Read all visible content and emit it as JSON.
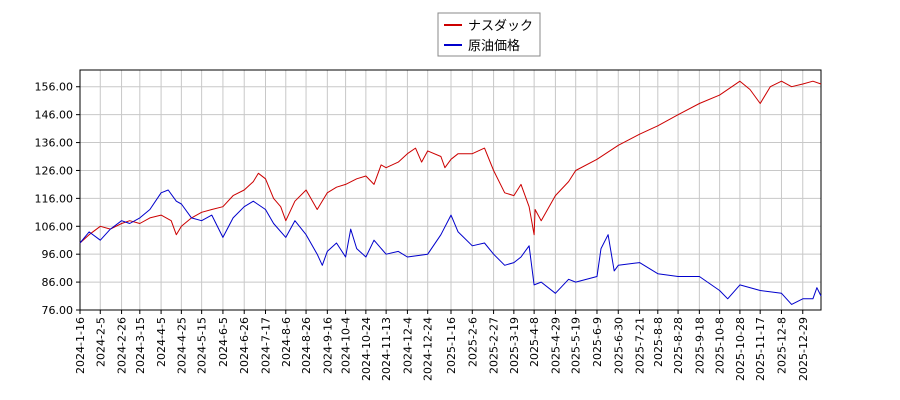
{
  "chart_data": {
    "type": "line",
    "title": "",
    "xlabel": "",
    "ylabel": "",
    "x_start": "2024-01-16",
    "x_end": "2026-01-16",
    "ylim": [
      76,
      162
    ],
    "yticks": [
      76,
      86,
      96,
      106,
      116,
      126,
      136,
      146,
      156
    ],
    "ytick_labels": [
      "76.00",
      "86.00",
      "96.00",
      "106.00",
      "116.00",
      "126.00",
      "136.00",
      "146.00",
      "156.00"
    ],
    "xticks": [
      "2024-1-16",
      "2024-2-5",
      "2024-2-26",
      "2024-3-15",
      "2024-4-5",
      "2024-4-25",
      "2024-5-15",
      "2024-6-5",
      "2024-6-26",
      "2024-7-17",
      "2024-8-6",
      "2024-8-26",
      "2024-9-16",
      "2024-10-4",
      "2024-10-24",
      "2024-11-13",
      "2024-12-4",
      "2024-12-24",
      "2025-1-16",
      "2025-2-6",
      "2025-2-27",
      "2025-3-19",
      "2025-4-8",
      "2025-4-29",
      "2025-5-19",
      "2025-6-9",
      "2025-6-30",
      "2025-7-21",
      "2025-8-8",
      "2025-8-28",
      "2025-9-18",
      "2025-10-8",
      "2025-10-28",
      "2025-11-17",
      "2025-12-8",
      "2025-12-29"
    ],
    "grid": true,
    "legend_position": "top-center",
    "series": [
      {
        "name": "ナスダック",
        "color": "#cc0000",
        "points": [
          [
            "2024-01-16",
            100
          ],
          [
            "2024-01-25",
            103
          ],
          [
            "2024-02-05",
            106
          ],
          [
            "2024-02-15",
            105
          ],
          [
            "2024-02-26",
            107
          ],
          [
            "2024-03-05",
            108
          ],
          [
            "2024-03-15",
            107
          ],
          [
            "2024-03-25",
            109
          ],
          [
            "2024-04-05",
            110
          ],
          [
            "2024-04-15",
            108
          ],
          [
            "2024-04-20",
            103
          ],
          [
            "2024-04-25",
            106
          ],
          [
            "2024-05-05",
            109
          ],
          [
            "2024-05-15",
            111
          ],
          [
            "2024-05-25",
            112
          ],
          [
            "2024-06-05",
            113
          ],
          [
            "2024-06-15",
            117
          ],
          [
            "2024-06-26",
            119
          ],
          [
            "2024-07-05",
            122
          ],
          [
            "2024-07-10",
            125
          ],
          [
            "2024-07-17",
            123
          ],
          [
            "2024-07-25",
            116
          ],
          [
            "2024-08-01",
            113
          ],
          [
            "2024-08-06",
            108
          ],
          [
            "2024-08-15",
            115
          ],
          [
            "2024-08-26",
            119
          ],
          [
            "2024-09-06",
            112
          ],
          [
            "2024-09-16",
            118
          ],
          [
            "2024-09-25",
            120
          ],
          [
            "2024-10-04",
            121
          ],
          [
            "2024-10-15",
            123
          ],
          [
            "2024-10-24",
            124
          ],
          [
            "2024-11-01",
            121
          ],
          [
            "2024-11-08",
            128
          ],
          [
            "2024-11-13",
            127
          ],
          [
            "2024-11-25",
            129
          ],
          [
            "2024-12-04",
            132
          ],
          [
            "2024-12-12",
            134
          ],
          [
            "2024-12-18",
            129
          ],
          [
            "2024-12-24",
            133
          ],
          [
            "2025-01-06",
            131
          ],
          [
            "2025-01-10",
            127
          ],
          [
            "2025-01-16",
            130
          ],
          [
            "2025-01-23",
            132
          ],
          [
            "2025-02-06",
            132
          ],
          [
            "2025-02-18",
            134
          ],
          [
            "2025-02-27",
            126
          ],
          [
            "2025-03-10",
            118
          ],
          [
            "2025-03-19",
            117
          ],
          [
            "2025-03-26",
            121
          ],
          [
            "2025-04-03",
            113
          ],
          [
            "2025-04-08",
            103
          ],
          [
            "2025-04-09",
            112
          ],
          [
            "2025-04-15",
            108
          ],
          [
            "2025-04-29",
            117
          ],
          [
            "2025-05-12",
            122
          ],
          [
            "2025-05-19",
            126
          ],
          [
            "2025-06-09",
            130
          ],
          [
            "2025-06-30",
            135
          ],
          [
            "2025-07-21",
            139
          ],
          [
            "2025-08-08",
            142
          ],
          [
            "2025-08-28",
            146
          ],
          [
            "2025-09-18",
            150
          ],
          [
            "2025-10-08",
            153
          ],
          [
            "2025-10-28",
            158
          ],
          [
            "2025-11-07",
            155
          ],
          [
            "2025-11-17",
            150
          ],
          [
            "2025-11-27",
            156
          ],
          [
            "2025-12-08",
            158
          ],
          [
            "2025-12-18",
            156
          ],
          [
            "2025-12-29",
            157
          ],
          [
            "2026-01-08",
            158
          ],
          [
            "2026-01-16",
            157
          ]
        ]
      },
      {
        "name": "原油価格",
        "color": "#0000cc",
        "points": [
          [
            "2024-01-16",
            100
          ],
          [
            "2024-01-25",
            104
          ],
          [
            "2024-02-05",
            101
          ],
          [
            "2024-02-15",
            105
          ],
          [
            "2024-02-26",
            108
          ],
          [
            "2024-03-05",
            107
          ],
          [
            "2024-03-15",
            109
          ],
          [
            "2024-03-25",
            112
          ],
          [
            "2024-04-05",
            118
          ],
          [
            "2024-04-12",
            119
          ],
          [
            "2024-04-20",
            115
          ],
          [
            "2024-04-25",
            114
          ],
          [
            "2024-05-05",
            109
          ],
          [
            "2024-05-15",
            108
          ],
          [
            "2024-05-25",
            110
          ],
          [
            "2024-06-05",
            102
          ],
          [
            "2024-06-15",
            109
          ],
          [
            "2024-06-26",
            113
          ],
          [
            "2024-07-05",
            115
          ],
          [
            "2024-07-17",
            112
          ],
          [
            "2024-07-25",
            107
          ],
          [
            "2024-08-06",
            102
          ],
          [
            "2024-08-15",
            108
          ],
          [
            "2024-08-26",
            103
          ],
          [
            "2024-09-06",
            96
          ],
          [
            "2024-09-11",
            92
          ],
          [
            "2024-09-16",
            97
          ],
          [
            "2024-09-25",
            100
          ],
          [
            "2024-10-04",
            95
          ],
          [
            "2024-10-09",
            105
          ],
          [
            "2024-10-15",
            98
          ],
          [
            "2024-10-24",
            95
          ],
          [
            "2024-11-01",
            101
          ],
          [
            "2024-11-13",
            96
          ],
          [
            "2024-11-25",
            97
          ],
          [
            "2024-12-04",
            95
          ],
          [
            "2024-12-24",
            96
          ],
          [
            "2025-01-06",
            103
          ],
          [
            "2025-01-16",
            110
          ],
          [
            "2025-01-23",
            104
          ],
          [
            "2025-02-06",
            99
          ],
          [
            "2025-02-18",
            100
          ],
          [
            "2025-02-27",
            96
          ],
          [
            "2025-03-10",
            92
          ],
          [
            "2025-03-19",
            93
          ],
          [
            "2025-03-26",
            95
          ],
          [
            "2025-04-03",
            99
          ],
          [
            "2025-04-08",
            85
          ],
          [
            "2025-04-15",
            86
          ],
          [
            "2025-04-29",
            82
          ],
          [
            "2025-05-12",
            87
          ],
          [
            "2025-05-19",
            86
          ],
          [
            "2025-06-09",
            88
          ],
          [
            "2025-06-13",
            98
          ],
          [
            "2025-06-20",
            103
          ],
          [
            "2025-06-26",
            90
          ],
          [
            "2025-06-30",
            92
          ],
          [
            "2025-07-21",
            93
          ],
          [
            "2025-08-08",
            89
          ],
          [
            "2025-08-28",
            88
          ],
          [
            "2025-09-18",
            88
          ],
          [
            "2025-10-08",
            83
          ],
          [
            "2025-10-16",
            80
          ],
          [
            "2025-10-28",
            85
          ],
          [
            "2025-11-17",
            83
          ],
          [
            "2025-12-08",
            82
          ],
          [
            "2025-12-18",
            78
          ],
          [
            "2025-12-29",
            80
          ],
          [
            "2026-01-08",
            80
          ],
          [
            "2026-01-12",
            84
          ],
          [
            "2026-01-16",
            81
          ]
        ]
      }
    ]
  }
}
